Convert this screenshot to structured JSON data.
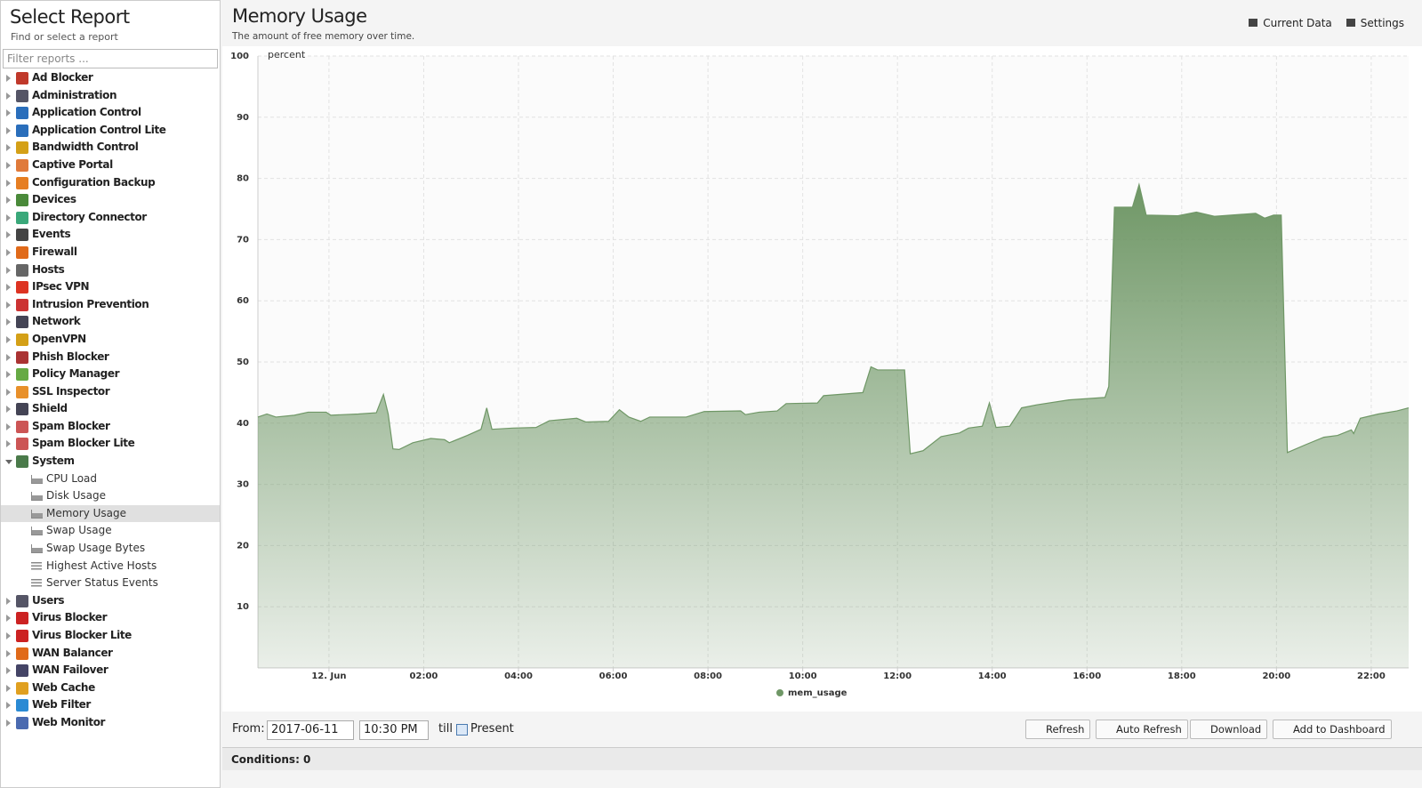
{
  "sidebar": {
    "title": "Select Report",
    "subtitle": "Find or select a report",
    "filter_placeholder": "Filter reports ...",
    "items": [
      {
        "label": "Ad Blocker"
      },
      {
        "label": "Administration"
      },
      {
        "label": "Application Control"
      },
      {
        "label": "Application Control Lite"
      },
      {
        "label": "Bandwidth Control"
      },
      {
        "label": "Captive Portal"
      },
      {
        "label": "Configuration Backup"
      },
      {
        "label": "Devices"
      },
      {
        "label": "Directory Connector"
      },
      {
        "label": "Events"
      },
      {
        "label": "Firewall"
      },
      {
        "label": "Hosts"
      },
      {
        "label": "IPsec VPN"
      },
      {
        "label": "Intrusion Prevention"
      },
      {
        "label": "Network"
      },
      {
        "label": "OpenVPN"
      },
      {
        "label": "Phish Blocker"
      },
      {
        "label": "Policy Manager"
      },
      {
        "label": "SSL Inspector"
      },
      {
        "label": "Shield"
      },
      {
        "label": "Spam Blocker"
      },
      {
        "label": "Spam Blocker Lite"
      },
      {
        "label": "System",
        "children": [
          {
            "label": "CPU Load",
            "icon": "area"
          },
          {
            "label": "Disk Usage",
            "icon": "area"
          },
          {
            "label": "Memory Usage",
            "icon": "area",
            "selected": true
          },
          {
            "label": "Swap Usage",
            "icon": "area"
          },
          {
            "label": "Swap Usage Bytes",
            "icon": "area"
          },
          {
            "label": "Highest Active Hosts",
            "icon": "bars"
          },
          {
            "label": "Server Status Events",
            "icon": "list"
          }
        ]
      },
      {
        "label": "Users"
      },
      {
        "label": "Virus Blocker"
      },
      {
        "label": "Virus Blocker Lite"
      },
      {
        "label": "WAN Balancer"
      },
      {
        "label": "WAN Failover"
      },
      {
        "label": "Web Cache"
      },
      {
        "label": "Web Filter"
      },
      {
        "label": "Web Monitor"
      }
    ]
  },
  "header": {
    "title": "Memory Usage",
    "subtitle": "The amount of free memory over time.",
    "actions": [
      "Current Data",
      "Settings"
    ]
  },
  "chart_data": {
    "type": "area",
    "y_label": "percent",
    "x": [
      -1.5,
      -1.31,
      -1.12,
      -0.73,
      -0.44,
      -0.06,
      0.04,
      0.62,
      1.0,
      1.15,
      1.25,
      1.35,
      1.48,
      1.77,
      2.15,
      2.44,
      2.54,
      2.92,
      3.21,
      3.33,
      3.44,
      3.88,
      4.37,
      4.65,
      5.23,
      5.42,
      5.9,
      6.13,
      6.33,
      6.58,
      6.77,
      7.54,
      7.92,
      8.69,
      8.79,
      9.08,
      9.46,
      9.65,
      10.31,
      10.44,
      11.27,
      11.44,
      11.58,
      12.15,
      12.27,
      12.54,
      12.92,
      13.31,
      13.5,
      13.79,
      13.94,
      14.08,
      14.37,
      14.62,
      14.94,
      15.62,
      16.38,
      16.46,
      16.58,
      16.96,
      17.1,
      17.25,
      17.92,
      18.31,
      18.69,
      19.56,
      19.75,
      19.94,
      20.1,
      20.23,
      20.62,
      21.0,
      21.29,
      21.58,
      21.63,
      21.77,
      22.15,
      22.54,
      22.79
    ],
    "series": [
      {
        "name": "mem_usage",
        "color": "#6f9766",
        "values": [
          41,
          41.5,
          41,
          41.3,
          41.8,
          41.8,
          41.3,
          41.5,
          41.7,
          44.7,
          41.5,
          35.8,
          35.7,
          36.8,
          37.5,
          37.3,
          36.8,
          38,
          39,
          42.5,
          39,
          39.2,
          39.3,
          40.4,
          40.8,
          40.2,
          40.3,
          42.2,
          41,
          40.3,
          41,
          41,
          41.9,
          42,
          41.4,
          41.8,
          42,
          43.2,
          43.3,
          44.5,
          45,
          49.2,
          48.7,
          48.7,
          35,
          35.5,
          37.8,
          38.4,
          39.2,
          39.5,
          43.3,
          39.3,
          39.5,
          42.5,
          43,
          43.8,
          44.2,
          46,
          75.3,
          75.3,
          79,
          74,
          73.9,
          74.5,
          73.8,
          74.3,
          73.5,
          74,
          74,
          35.2,
          36.5,
          37.7,
          38,
          38.9,
          38.3,
          40.8,
          41.5,
          42,
          42.5
        ]
      }
    ],
    "xlim": [
      -1.5,
      22.79
    ],
    "xticks": [
      {
        "value": 0,
        "label": "12. Jun"
      },
      {
        "value": 2,
        "label": "02:00"
      },
      {
        "value": 4,
        "label": "04:00"
      },
      {
        "value": 6,
        "label": "06:00"
      },
      {
        "value": 8,
        "label": "08:00"
      },
      {
        "value": 10,
        "label": "10:00"
      },
      {
        "value": 12,
        "label": "12:00"
      },
      {
        "value": 14,
        "label": "14:00"
      },
      {
        "value": 16,
        "label": "16:00"
      },
      {
        "value": 18,
        "label": "18:00"
      },
      {
        "value": 20,
        "label": "20:00"
      },
      {
        "value": 22,
        "label": "22:00"
      }
    ],
    "ylim": [
      0,
      100
    ],
    "yticks": [
      10,
      20,
      30,
      40,
      50,
      60,
      70,
      80,
      90,
      100
    ],
    "grid": true
  },
  "toolbar": {
    "from_label": "From:",
    "date": "2017-06-11",
    "time": "10:30 PM",
    "till_label": "till",
    "present_label": "Present",
    "buttons": [
      "Refresh",
      "Auto Refresh",
      "Download",
      "Add to Dashboard"
    ]
  },
  "conditions": "Conditions: 0"
}
